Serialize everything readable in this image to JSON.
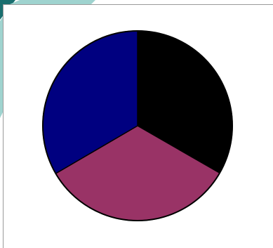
{
  "chart_data": {
    "type": "pie",
    "title": "",
    "values": [
      33.3,
      33.3,
      33.4
    ],
    "colors": [
      "#000000",
      "#993366",
      "#000080"
    ],
    "start_angle_deg": 0,
    "direction": "clockwise",
    "legend": "none"
  },
  "decoration": {
    "corner_colors": [
      "#1a6f6f",
      "#9fd3cf"
    ]
  }
}
